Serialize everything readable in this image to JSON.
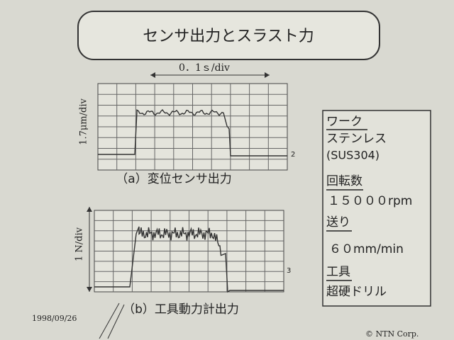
{
  "title": "センサ出力とスラスト力",
  "time_scale": "0．1ｓ/div",
  "upper": {
    "scale": "1.7μm/div",
    "caption": "（a）変位センサ出力",
    "channel": "2"
  },
  "lower": {
    "scale": "1 N/div",
    "caption": "（b）工具動力計出力",
    "channel": "3"
  },
  "conditions": {
    "work_label": "ワーク",
    "work": "ステンレス",
    "work_grade": "(SUS304)",
    "speed_label": "回転数",
    "speed": "１５０００rpm",
    "feed_label": "送り",
    "feed": "６０mm/min",
    "tool_label": "工具",
    "tool": "超硬ドリル"
  },
  "date": "1998/09/26",
  "copyright": "© NTN Corp."
}
